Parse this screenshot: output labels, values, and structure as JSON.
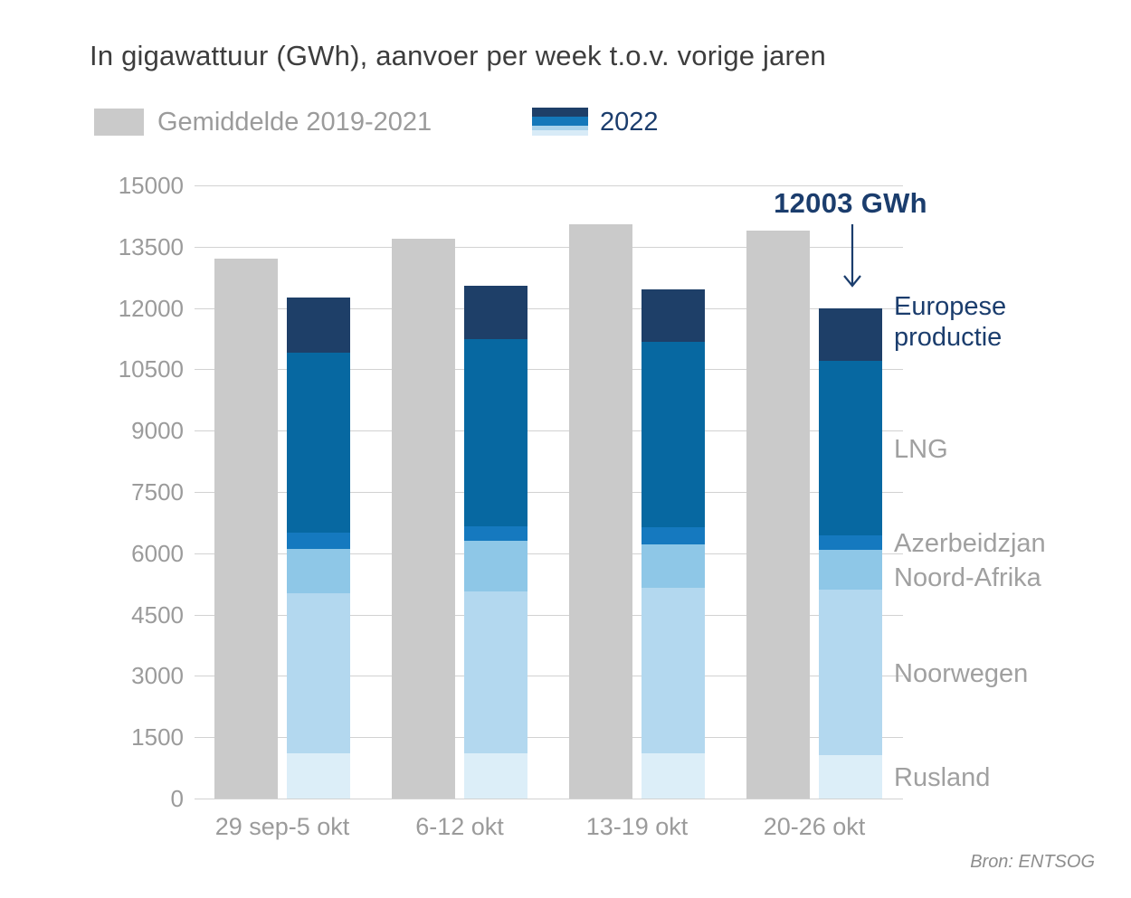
{
  "title": "In gigawattuur (GWh), aanvoer per week t.o.v. vorige jaren",
  "legend": {
    "average_label": "Gemiddelde 2019-2021",
    "average_color": "#cacaca",
    "year_label": "2022",
    "year_label_color": "#1b3d6d",
    "year_swatch_colors": [
      "#1e3f68",
      "#1478ba",
      "#a9d3ec",
      "#d8ebf7"
    ]
  },
  "annotation": {
    "text": "12003 GWh",
    "color": "#1b3d6d"
  },
  "source": "Bron: ENTSOG",
  "colors": {
    "title_text": "#3d3d3d",
    "axis_text": "#9b9b9b",
    "gridline": "#d2d2d2",
    "navy": "#1b3d6d",
    "gray_label": "#a0a0a0"
  },
  "chart_data": {
    "type": "bar",
    "title": "In gigawattuur (GWh), aanvoer per week t.o.v. vorige jaren",
    "categories": [
      "29 sep-5 okt",
      "6-12 okt",
      "13-19 okt",
      "20-26 okt"
    ],
    "average_series": {
      "name": "Gemiddelde 2019-2021",
      "color": "#cacaca",
      "values": [
        13200,
        13700,
        14050,
        13900
      ]
    },
    "stacked_series": [
      {
        "name": "Rusland",
        "color": "#dceef8",
        "label_color": "#a0a0a0",
        "values": [
          1100,
          1105,
          1105,
          1060
        ]
      },
      {
        "name": "Noorwegen",
        "color": "#b3d8ef",
        "label_color": "#a0a0a0",
        "values": [
          3920,
          3960,
          4050,
          4050
        ]
      },
      {
        "name": "Noord-Afrika",
        "color": "#8ec7e7",
        "label_color": "#a0a0a0",
        "values": [
          1085,
          1240,
          1060,
          975
        ]
      },
      {
        "name": "Azerbeidzjan",
        "color": "#1579bf",
        "label_color": "#a0a0a0",
        "values": [
          400,
          355,
          420,
          355
        ]
      },
      {
        "name": "LNG",
        "color": "#0768a1",
        "label_color": "#a0a0a0",
        "values": [
          4400,
          4580,
          4535,
          4265
        ]
      },
      {
        "name": "Europese productie",
        "color": "#1e3f68",
        "label_color": "#1b3d6d",
        "values": [
          1350,
          1310,
          1285,
          1298
        ]
      }
    ],
    "stacked_totals": [
      12255,
      12550,
      12455,
      12003
    ],
    "annotated_value": 12003,
    "ylabel": "GWh",
    "ylim": [
      0,
      15000
    ],
    "yticks": [
      0,
      1500,
      3000,
      4500,
      6000,
      7500,
      9000,
      10500,
      12000,
      13500,
      15000
    ],
    "grid": true,
    "legend_position": "top"
  }
}
